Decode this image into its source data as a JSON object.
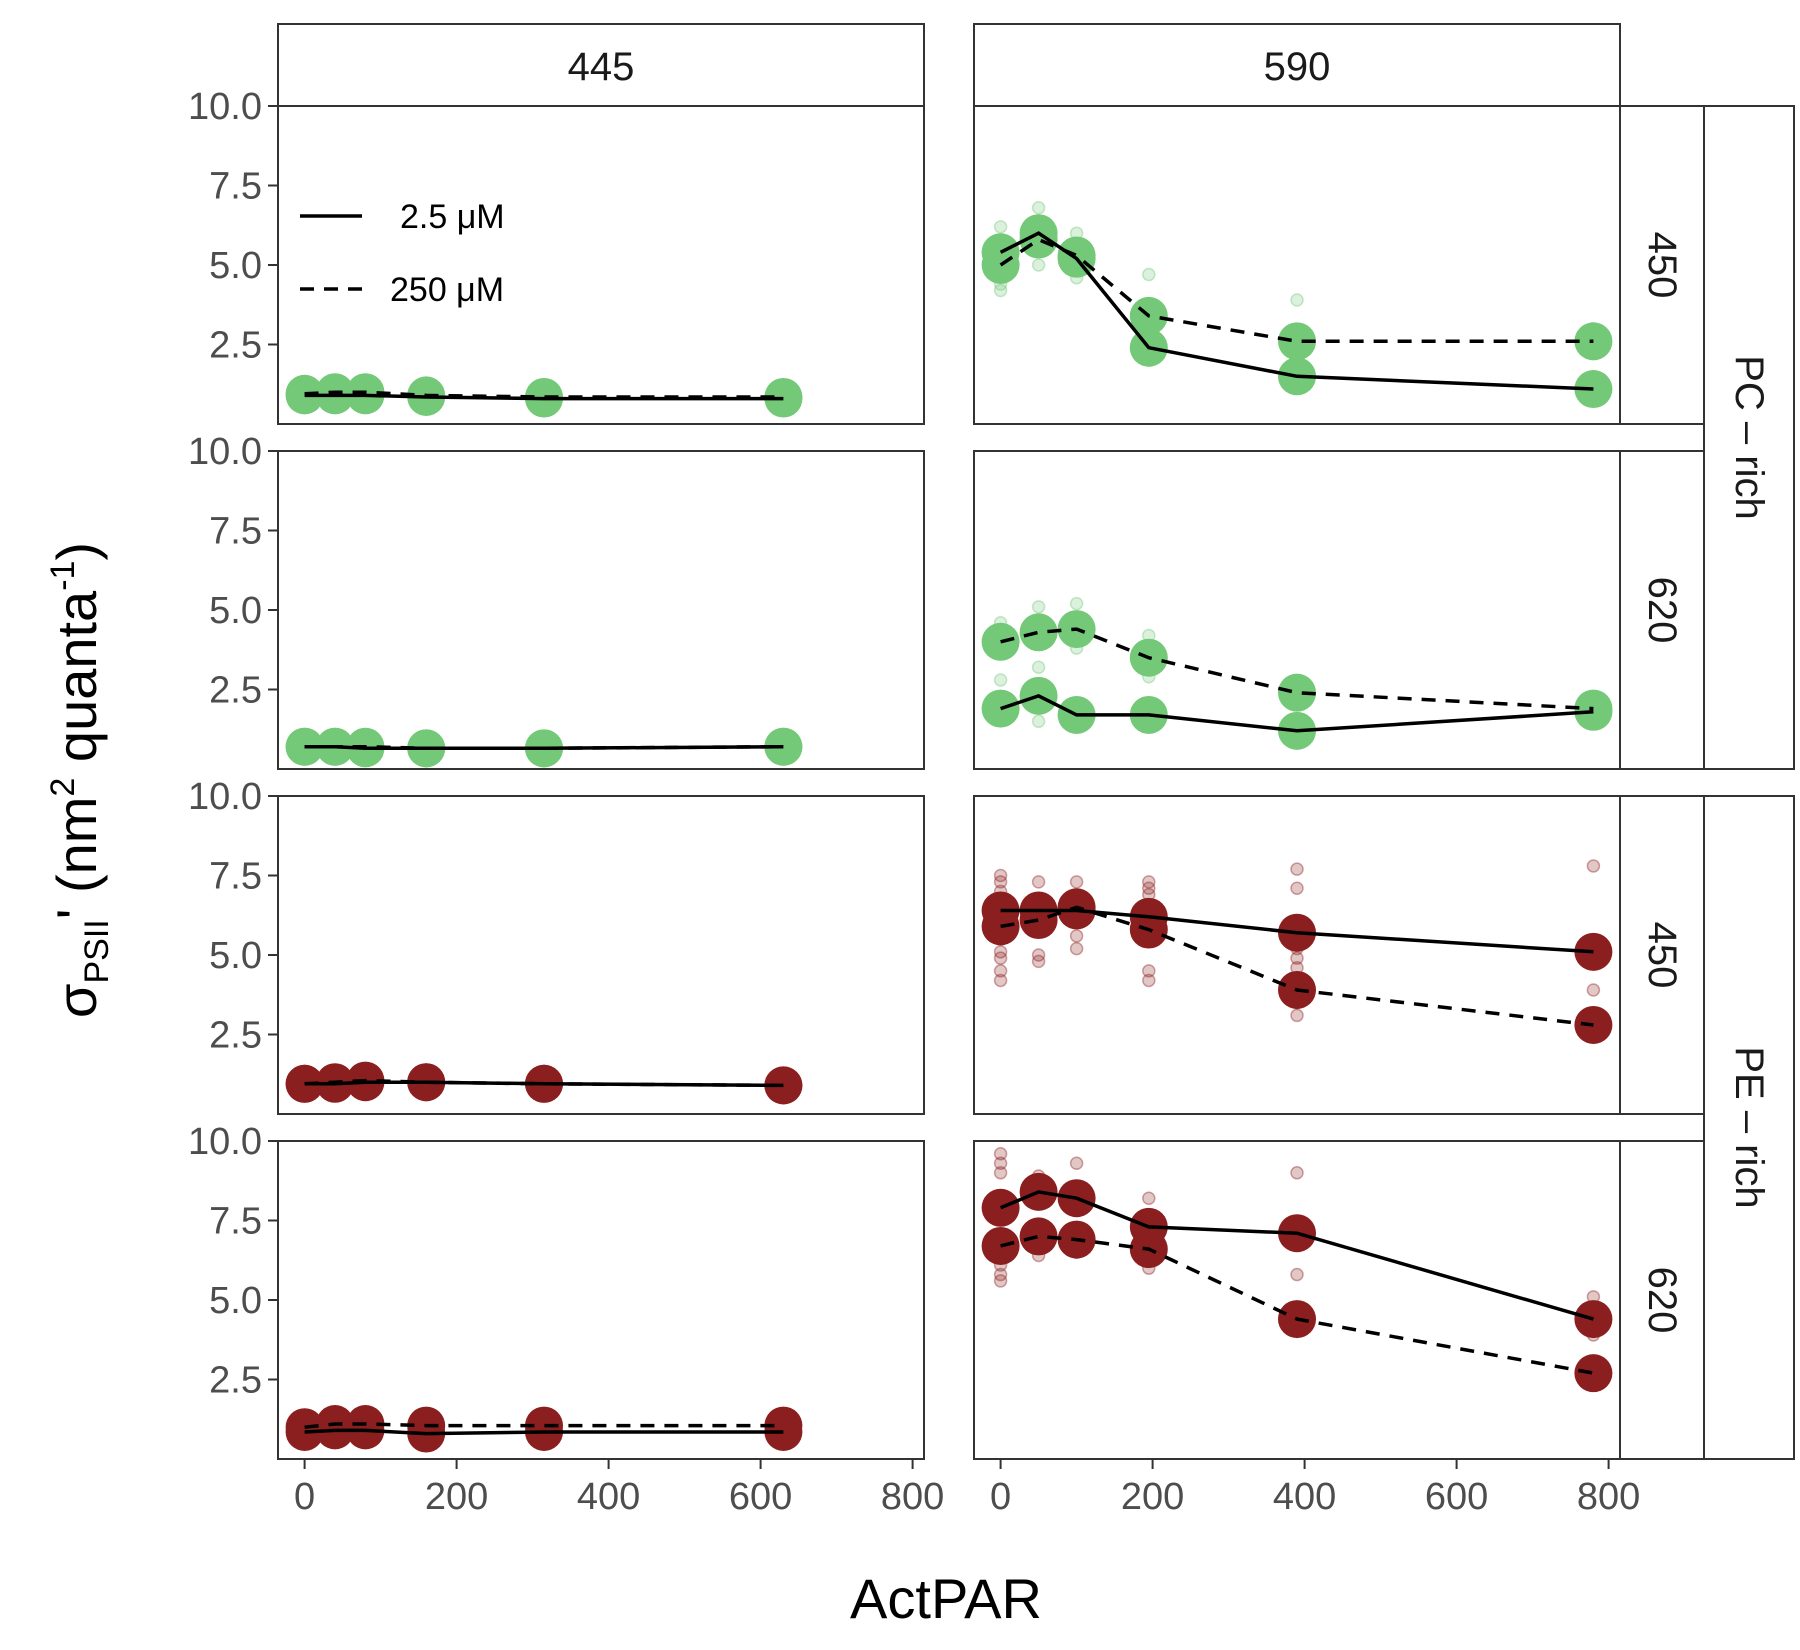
{
  "chart_data": {
    "type": "scatter",
    "xlabel": "ActPAR",
    "ylabel": {
      "sigma": "σ",
      "sub": "PSII",
      "prime": "'",
      "open": "(nm",
      "sup1": "2",
      "mid": "quanta",
      "sup2": "-1",
      "close": ")"
    },
    "x_ticks": [
      "0",
      "200",
      "400",
      "600",
      "800"
    ],
    "y_ticks": [
      "2.5",
      "5.0",
      "7.5",
      "10.0"
    ],
    "xlim": [
      -35,
      815
    ],
    "ylim": [
      0,
      10
    ],
    "columns": [
      "445",
      "590"
    ],
    "row_groups": [
      "PC – rich",
      "PE – rich"
    ],
    "rows": [
      "450",
      "620",
      "450",
      "620"
    ],
    "legend": {
      "position": "top-left",
      "items": [
        {
          "label": "2.5 μM",
          "linetype": "solid"
        },
        {
          "label": "250 μM",
          "linetype": "dashed"
        }
      ]
    },
    "colors": {
      "PC – rich": "#73c977",
      "PE – rich": "#8b1e1e",
      "line": "#000000",
      "panel_border": "#333333"
    },
    "panels": [
      {
        "row": 0,
        "col": 0,
        "group": "PC – rich",
        "strip_right": "450",
        "series": [
          {
            "linetype": "solid",
            "x": [
              0,
              40,
              80,
              160,
              315,
              630
            ],
            "y": [
              0.9,
              0.9,
              0.9,
              0.85,
              0.8,
              0.8
            ]
          },
          {
            "linetype": "dashed",
            "x": [
              0,
              40,
              80,
              160,
              315,
              630
            ],
            "y": [
              0.95,
              1.0,
              1.0,
              0.9,
              0.85,
              0.85
            ]
          }
        ]
      },
      {
        "row": 0,
        "col": 1,
        "group": "PC – rich",
        "strip_right": "450",
        "series": [
          {
            "linetype": "solid",
            "x": [
              0,
              50,
              100,
              195,
              390,
              780
            ],
            "y": [
              5.4,
              6.0,
              5.2,
              2.4,
              1.5,
              1.1
            ]
          },
          {
            "linetype": "dashed",
            "x": [
              0,
              50,
              100,
              195,
              390,
              780
            ],
            "y": [
              5.0,
              5.8,
              5.3,
              3.4,
              2.6,
              2.6
            ]
          }
        ],
        "scatter": [
          {
            "x": [
              0,
              0,
              0,
              50,
              50,
              100,
              100,
              195,
              195,
              390,
              390,
              780
            ],
            "y": [
              4.2,
              4.4,
              6.2,
              5.0,
              6.8,
              4.6,
              6.0,
              4.7,
              2.0,
              3.9,
              1.2,
              3.0
            ]
          }
        ]
      },
      {
        "row": 1,
        "col": 0,
        "group": "PC – rich",
        "strip_right": "620",
        "series": [
          {
            "linetype": "solid",
            "x": [
              0,
              40,
              80,
              160,
              315,
              630
            ],
            "y": [
              0.7,
              0.7,
              0.65,
              0.65,
              0.65,
              0.7
            ]
          },
          {
            "linetype": "dashed",
            "x": [
              0,
              40,
              80,
              160,
              315,
              630
            ],
            "y": [
              0.7,
              0.7,
              0.7,
              0.65,
              0.65,
              0.7
            ]
          }
        ]
      },
      {
        "row": 1,
        "col": 1,
        "group": "PC – rich",
        "strip_right": "620",
        "series": [
          {
            "linetype": "solid",
            "x": [
              0,
              50,
              100,
              195,
              390,
              780
            ],
            "y": [
              1.9,
              2.3,
              1.7,
              1.7,
              1.2,
              1.8
            ]
          },
          {
            "linetype": "dashed",
            "x": [
              0,
              50,
              100,
              195,
              390,
              780
            ],
            "y": [
              4.0,
              4.3,
              4.4,
              3.5,
              2.4,
              1.9
            ]
          }
        ],
        "scatter": [
          {
            "x": [
              0,
              0,
              50,
              50,
              50,
              100,
              100,
              195,
              195,
              390,
              780
            ],
            "y": [
              2.8,
              4.6,
              5.1,
              3.2,
              1.5,
              5.2,
              3.8,
              4.2,
              2.9,
              2.6,
              1.7
            ]
          }
        ]
      },
      {
        "row": 2,
        "col": 0,
        "group": "PE – rich",
        "strip_right": "450",
        "series": [
          {
            "linetype": "solid",
            "x": [
              0,
              40,
              80,
              160,
              315,
              630
            ],
            "y": [
              0.95,
              0.95,
              1.0,
              1.0,
              0.95,
              0.9
            ]
          },
          {
            "linetype": "dashed",
            "x": [
              0,
              40,
              80,
              160,
              315,
              630
            ],
            "y": [
              0.95,
              1.0,
              1.05,
              1.0,
              0.95,
              0.9
            ]
          }
        ]
      },
      {
        "row": 2,
        "col": 1,
        "group": "PE – rich",
        "strip_right": "450",
        "series": [
          {
            "linetype": "solid",
            "x": [
              0,
              50,
              100,
              195,
              390,
              780
            ],
            "y": [
              6.4,
              6.4,
              6.4,
              6.2,
              5.7,
              5.1
            ]
          },
          {
            "linetype": "dashed",
            "x": [
              0,
              50,
              100,
              195,
              390,
              780
            ],
            "y": [
              5.9,
              6.1,
              6.5,
              5.8,
              3.9,
              2.8
            ]
          }
        ],
        "scatter": [
          {
            "x": [
              0,
              0,
              0,
              0,
              0,
              0,
              0,
              0,
              50,
              50,
              50,
              100,
              100,
              100,
              195,
              195,
              195,
              195,
              195,
              390,
              390,
              390,
              390,
              390,
              390,
              390,
              780,
              780,
              780
            ],
            "y": [
              7.5,
              7.3,
              7.0,
              5.5,
              5.1,
              4.9,
              4.5,
              4.2,
              7.3,
              5.0,
              4.8,
              7.3,
              5.6,
              5.2,
              7.3,
              7.1,
              6.9,
              4.5,
              4.2,
              7.7,
              7.1,
              5.2,
              4.9,
              4.6,
              3.5,
              3.1,
              2.5,
              7.8,
              3.9
            ]
          }
        ]
      },
      {
        "row": 3,
        "col": 0,
        "group": "PE – rich",
        "strip_right": "620",
        "series": [
          {
            "linetype": "solid",
            "x": [
              0,
              40,
              80,
              160,
              315,
              630
            ],
            "y": [
              0.85,
              0.9,
              0.9,
              0.8,
              0.85,
              0.85
            ]
          },
          {
            "linetype": "dashed",
            "x": [
              0,
              40,
              80,
              160,
              315,
              630
            ],
            "y": [
              1.0,
              1.1,
              1.1,
              1.05,
              1.05,
              1.05
            ]
          }
        ]
      },
      {
        "row": 3,
        "col": 1,
        "group": "PE – rich",
        "strip_right": "620",
        "series": [
          {
            "linetype": "solid",
            "x": [
              0,
              50,
              100,
              195,
              390,
              780
            ],
            "y": [
              7.9,
              8.4,
              8.2,
              7.3,
              7.1,
              4.4
            ]
          },
          {
            "linetype": "dashed",
            "x": [
              0,
              50,
              100,
              195,
              390,
              780
            ],
            "y": [
              6.7,
              7.0,
              6.9,
              6.6,
              4.4,
              2.7
            ]
          }
        ],
        "scatter": [
          {
            "x": [
              0,
              0,
              0,
              0,
              0,
              0,
              50,
              50,
              100,
              100,
              195,
              195,
              390,
              390,
              780,
              780
            ],
            "y": [
              9.6,
              9.3,
              9.0,
              6.1,
              5.8,
              5.6,
              6.4,
              8.9,
              9.3,
              6.5,
              8.2,
              6.0,
              9.0,
              5.8,
              5.1,
              3.9
            ]
          }
        ]
      }
    ]
  }
}
